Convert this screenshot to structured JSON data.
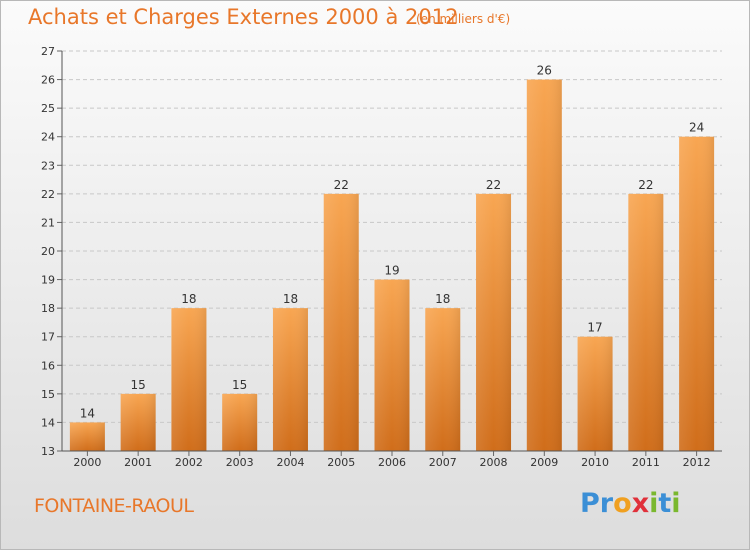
{
  "title": "Achats et Charges Externes 2000 à 2012",
  "unit": "(en milliers d'€)",
  "commune": "FONTAINE-RAOUL",
  "logo": {
    "letters": [
      {
        "ch": "P",
        "color": "#3b8fd6"
      },
      {
        "ch": "r",
        "color": "#3b8fd6"
      },
      {
        "ch": "o",
        "color": "#f0a020"
      },
      {
        "ch": "x",
        "color": "#e0303a"
      },
      {
        "ch": "i",
        "color": "#7ab82e"
      },
      {
        "ch": "t",
        "color": "#3b8fd6"
      },
      {
        "ch": "i",
        "color": "#7ab82e"
      }
    ]
  },
  "colors": {
    "accent": "#e8772a",
    "bar_top": "#f8a652",
    "bar_bottom": "#d06d1a"
  },
  "chart_data": {
    "type": "bar",
    "categories": [
      "2000",
      "2001",
      "2002",
      "2003",
      "2004",
      "2005",
      "2006",
      "2007",
      "2008",
      "2009",
      "2010",
      "2011",
      "2012"
    ],
    "values": [
      14,
      15,
      18,
      15,
      18,
      22,
      19,
      18,
      22,
      26,
      17,
      22,
      24
    ],
    "ylim": [
      13,
      27
    ],
    "yticks": [
      13,
      14,
      15,
      16,
      17,
      18,
      19,
      20,
      21,
      22,
      23,
      24,
      25,
      26,
      27
    ],
    "grid": true,
    "data_labels": true
  }
}
